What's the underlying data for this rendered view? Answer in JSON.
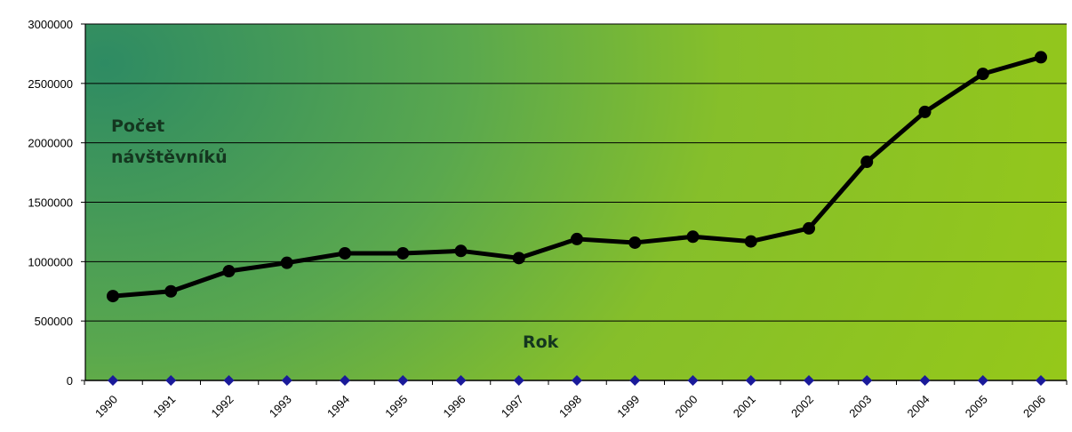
{
  "chart_data": {
    "type": "line",
    "categories": [
      "1990",
      "1991",
      "1992",
      "1993",
      "1994",
      "1995",
      "1996",
      "1997",
      "1998",
      "1999",
      "2000",
      "2001",
      "2002",
      "2003",
      "2004",
      "2005",
      "2006"
    ],
    "series": [
      {
        "values": [
          710000,
          750000,
          920000,
          990000,
          1070000,
          1070000,
          1090000,
          1030000,
          1190000,
          1160000,
          1210000,
          1170000,
          1280000,
          1840000,
          2260000,
          2580000,
          2720000
        ],
        "color": "#000000"
      },
      {
        "values": [
          0,
          0,
          0,
          0,
          0,
          0,
          0,
          0,
          0,
          0,
          0,
          0,
          0,
          0,
          0,
          0,
          0
        ],
        "color": "#1a1a9a"
      }
    ],
    "y_ticks": [
      "0",
      "500000",
      "1000000",
      "1500000",
      "2000000",
      "2500000",
      "3000000"
    ],
    "ylim": [
      0,
      3000000
    ],
    "ylabel_lines": [
      "Počet",
      "návštěvníků"
    ],
    "xlabel": "Rok",
    "grid": true,
    "colors": {
      "bg_dark": "#2e8b57",
      "bg_light": "#95c51a",
      "grid": "#000000"
    }
  }
}
